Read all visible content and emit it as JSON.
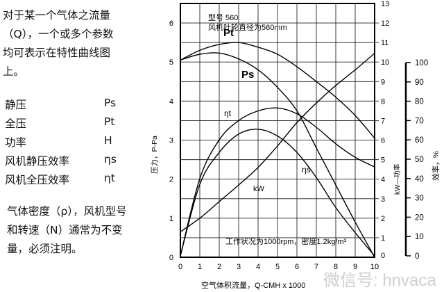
{
  "intro": {
    "lines": [
      "对于某一个气体之流量",
      "（Q），一个或多个参数",
      "均可表示在特性曲线图",
      "上。"
    ]
  },
  "legend": [
    {
      "name": "静压",
      "symbol": "Ps"
    },
    {
      "name": "全压",
      "symbol": "Pt"
    },
    {
      "name": "功率",
      "symbol": "H"
    },
    {
      "name": "风机静压效率",
      "symbol": "ηs"
    },
    {
      "name": "风机全压效率",
      "symbol": "ηt"
    }
  ],
  "note": {
    "lines": [
      "气体密度（ρ），风机型号",
      "和转速（N）通常为不变",
      "量，必须注明。"
    ]
  },
  "watermark": "微信号: hnvaca",
  "chart_data": {
    "type": "line",
    "annotations": {
      "model": "型号 560",
      "impeller": "风机叶轮直径为560mm",
      "conditions": "工作状况为1000rpm，密度1.2kg/m³"
    },
    "xlabel": "空气体积流量，Q-CMH x 1000",
    "ylabel_left": "压力，P-Pa",
    "ylabel_right": "kW—功率",
    "ylabel_right2": "效率，%",
    "x": [
      0,
      1,
      2,
      3,
      4,
      5,
      6,
      7,
      8,
      9,
      10
    ],
    "xlim": [
      0,
      10
    ],
    "ylim_left": [
      0,
      6.5
    ],
    "ylim_right": [
      0,
      13
    ],
    "ylim_right2": [
      0,
      100
    ],
    "x_ticks": [
      "0",
      "1",
      "2",
      "3",
      "4",
      "5",
      "6",
      "7",
      "8",
      "9",
      "10"
    ],
    "left_ticks": [
      "0",
      "1",
      "2",
      "3",
      "4",
      "5",
      "6"
    ],
    "right_ticks": [
      "0",
      "1",
      "2",
      "3",
      "4",
      "5",
      "6",
      "7",
      "8",
      "9",
      "10",
      "11",
      "12",
      "13"
    ],
    "right2_ticks": [
      "0",
      "10",
      "20",
      "30",
      "40",
      "50",
      "60",
      "70",
      "80",
      "90",
      "100"
    ],
    "grid": true,
    "series": [
      {
        "name": "Pt",
        "axis": "left",
        "values": [
          5.05,
          5.3,
          5.45,
          5.5,
          5.38,
          5.2,
          4.88,
          4.5,
          4.1,
          3.63,
          3.05
        ]
      },
      {
        "name": "Ps",
        "axis": "left",
        "values": [
          5.05,
          5.2,
          5.23,
          5.08,
          4.8,
          4.35,
          3.75,
          2.8,
          1.85,
          0.9,
          0
        ]
      },
      {
        "name": "ηt",
        "axis": "right2",
        "values": [
          0,
          40,
          60,
          70,
          75,
          76.5,
          73.5,
          66.5,
          58,
          51,
          46
        ]
      },
      {
        "name": "ηs",
        "axis": "right2",
        "values": [
          0,
          37,
          53.5,
          63,
          65.5,
          62,
          53.5,
          40.5,
          25,
          12,
          0
        ]
      },
      {
        "name": "kW",
        "axis": "right",
        "values": [
          1.3,
          2.0,
          2.85,
          3.7,
          4.6,
          5.7,
          6.9,
          7.9,
          8.8,
          9.6,
          10.45
        ]
      }
    ]
  }
}
